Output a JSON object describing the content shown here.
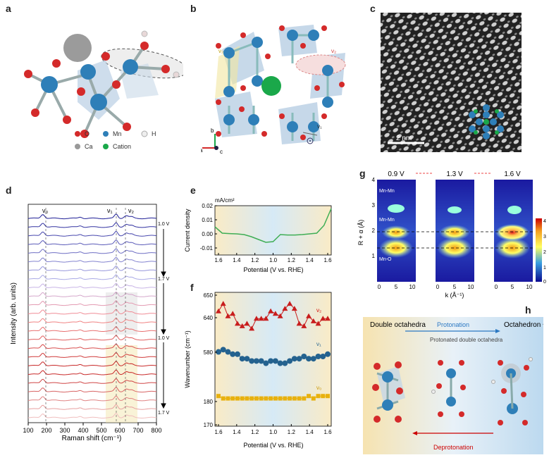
{
  "panels": {
    "a": {
      "letter": "a",
      "legend": {
        "items": [
          "O",
          "Mn",
          "H",
          "Ca",
          "Cation"
        ]
      }
    },
    "b": {
      "letter": "b",
      "labels": {
        "v2": "ν₂",
        "v3": "ν₂",
        "v1": "ν₁",
        "axis_b": "b",
        "axis_a": "a",
        "axis_c": "c"
      }
    },
    "c": {
      "letter": "c",
      "scale_bar": "2 nm"
    },
    "d": {
      "letter": "d",
      "xlabel": "Raman shift (cm⁻¹)",
      "ylabel": "Intensity (arb. units)",
      "peak_labels": [
        "ν₀",
        "ν₁",
        "ν₂"
      ],
      "voltage_labels": [
        "1.0 V",
        "1.7 V",
        "1.0 V",
        "1.7 V"
      ],
      "xticks": [
        "100",
        "200",
        "300",
        "400",
        "500",
        "600",
        "700",
        "800"
      ]
    },
    "e": {
      "letter": "e",
      "unit": "mA/cm²",
      "ylabel": "Current density",
      "xlabel": "Potential (V vs. RHE)",
      "yticks": [
        "0.02",
        "0.01",
        "0.00",
        "-0.01"
      ],
      "xticks": [
        "1.6",
        "1.4",
        "1.2",
        "1.0",
        "1.2",
        "1.4",
        "1.6"
      ]
    },
    "f": {
      "letter": "f",
      "ylabel": "Wavenumber (cm⁻¹)",
      "xlabel": "Potential (V vs. RHE)",
      "yticks_top": [
        "650",
        "640"
      ],
      "ytick_mid": "580",
      "yticks_bottom": [
        "180",
        "170"
      ],
      "xticks": [
        "1.6",
        "1.4",
        "1.2",
        "1.0",
        "1.2",
        "1.4",
        "1.6"
      ],
      "series_labels": [
        "ν₂",
        "ν₁",
        "ν₀"
      ]
    },
    "g": {
      "letter": "g",
      "titles": [
        "0.9 V",
        "1.3 V",
        "1.6 V"
      ],
      "ylabel": "R + α (Å)",
      "xlabel": "k (Å⁻¹)",
      "yticks": [
        "4",
        "3",
        "2",
        "1"
      ],
      "xticks": [
        "0",
        "5",
        "10"
      ],
      "annotations": [
        "Mn-Mn",
        "corner",
        "Mn-Mn",
        "edge",
        "Mn-O"
      ],
      "colorbar_ticks": [
        "4",
        "3",
        "2",
        "1",
        "0"
      ]
    },
    "h": {
      "letter": "h",
      "left_title": "Double octahedra",
      "right_title": "Octahedron + tetrahedron",
      "center_title": "Protonated double octahedra",
      "top_arrow": "Protonation",
      "bottom_arrow": "Deprotonation"
    }
  },
  "chart_data": [
    {
      "type": "line",
      "panel": "e",
      "title": "",
      "xlabel": "Potential (V vs. RHE)",
      "ylabel": "Current density",
      "unit": "mA/cm²",
      "ylim": [
        -0.015,
        0.02
      ],
      "x": [
        1.6,
        1.5,
        1.4,
        1.3,
        1.2,
        1.1,
        1.05,
        1.0,
        0.98,
        1.0,
        1.1,
        1.2,
        1.3,
        1.4,
        1.5,
        1.58,
        1.6
      ],
      "values": [
        0.005,
        0.0005,
        0.0002,
        0.0,
        -0.0005,
        -0.002,
        -0.004,
        -0.006,
        -0.0055,
        -0.0005,
        -0.0008,
        -0.0008,
        -0.0005,
        0.0,
        0.0005,
        0.006,
        0.018
      ]
    },
    {
      "type": "scatter",
      "panel": "f",
      "xlabel": "Potential (V vs. RHE)",
      "ylabel": "Wavenumber (cm⁻¹)",
      "series": [
        {
          "name": "ν₂",
          "values": [
            643,
            646,
            641,
            642,
            638,
            637,
            638,
            636,
            640,
            640,
            640,
            643,
            642,
            641,
            644,
            646,
            644,
            638,
            637,
            641,
            639,
            638,
            640,
            640
          ]
        },
        {
          "name": "ν₁",
          "values": [
            583,
            584,
            583,
            582,
            582,
            580,
            580,
            579,
            579,
            579,
            578,
            579,
            579,
            578,
            578,
            579,
            580,
            580,
            581,
            580,
            580,
            581,
            581,
            582
          ]
        },
        {
          "name": "ν₀",
          "values": [
            182,
            181,
            181,
            181,
            181,
            181,
            181,
            181,
            181,
            181,
            181,
            181,
            181,
            181,
            181,
            181,
            181,
            181,
            181,
            182,
            181,
            182,
            182,
            182
          ]
        }
      ]
    }
  ]
}
